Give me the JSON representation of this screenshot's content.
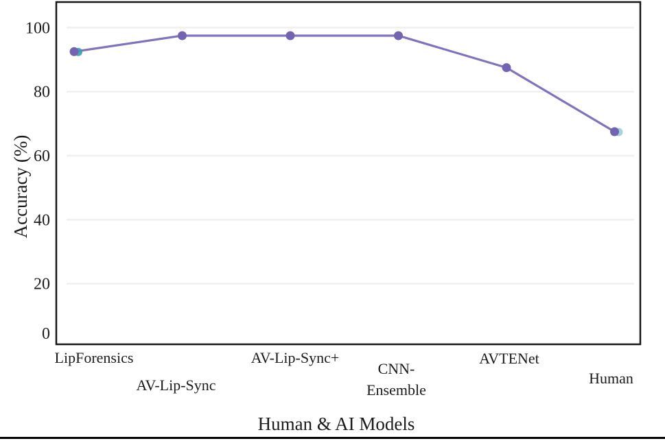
{
  "chart_data": {
    "type": "line",
    "title": "",
    "xlabel": "Human & AI Models",
    "ylabel": "Accuracy (%)",
    "categories": [
      "LipForensics",
      "AV-Lip-Sync",
      "AV-Lip-Sync+",
      "CNN-Ensemble",
      "AVTENet",
      "Human"
    ],
    "values": [
      92.5,
      97.5,
      97.5,
      97.5,
      87.5,
      67.5
    ],
    "series": [
      {
        "name": "Accuracy (%)",
        "values": [
          92.5,
          97.5,
          97.5,
          97.5,
          87.5,
          67.5
        ]
      }
    ],
    "ylim": [
      0,
      100
    ],
    "y_ticks": [
      0,
      20,
      40,
      60,
      80,
      100
    ],
    "grid": "horizontal-light",
    "legend": "none",
    "marker_accent_indices": [
      0,
      5
    ],
    "colors": {
      "line": "#8172be",
      "marker": "#7463b0",
      "marker_accent": "#3d9bb5",
      "gridline": "#efefef",
      "plot_border": "#161616",
      "text": "#1a1a1a",
      "background": "#ffffff"
    }
  }
}
